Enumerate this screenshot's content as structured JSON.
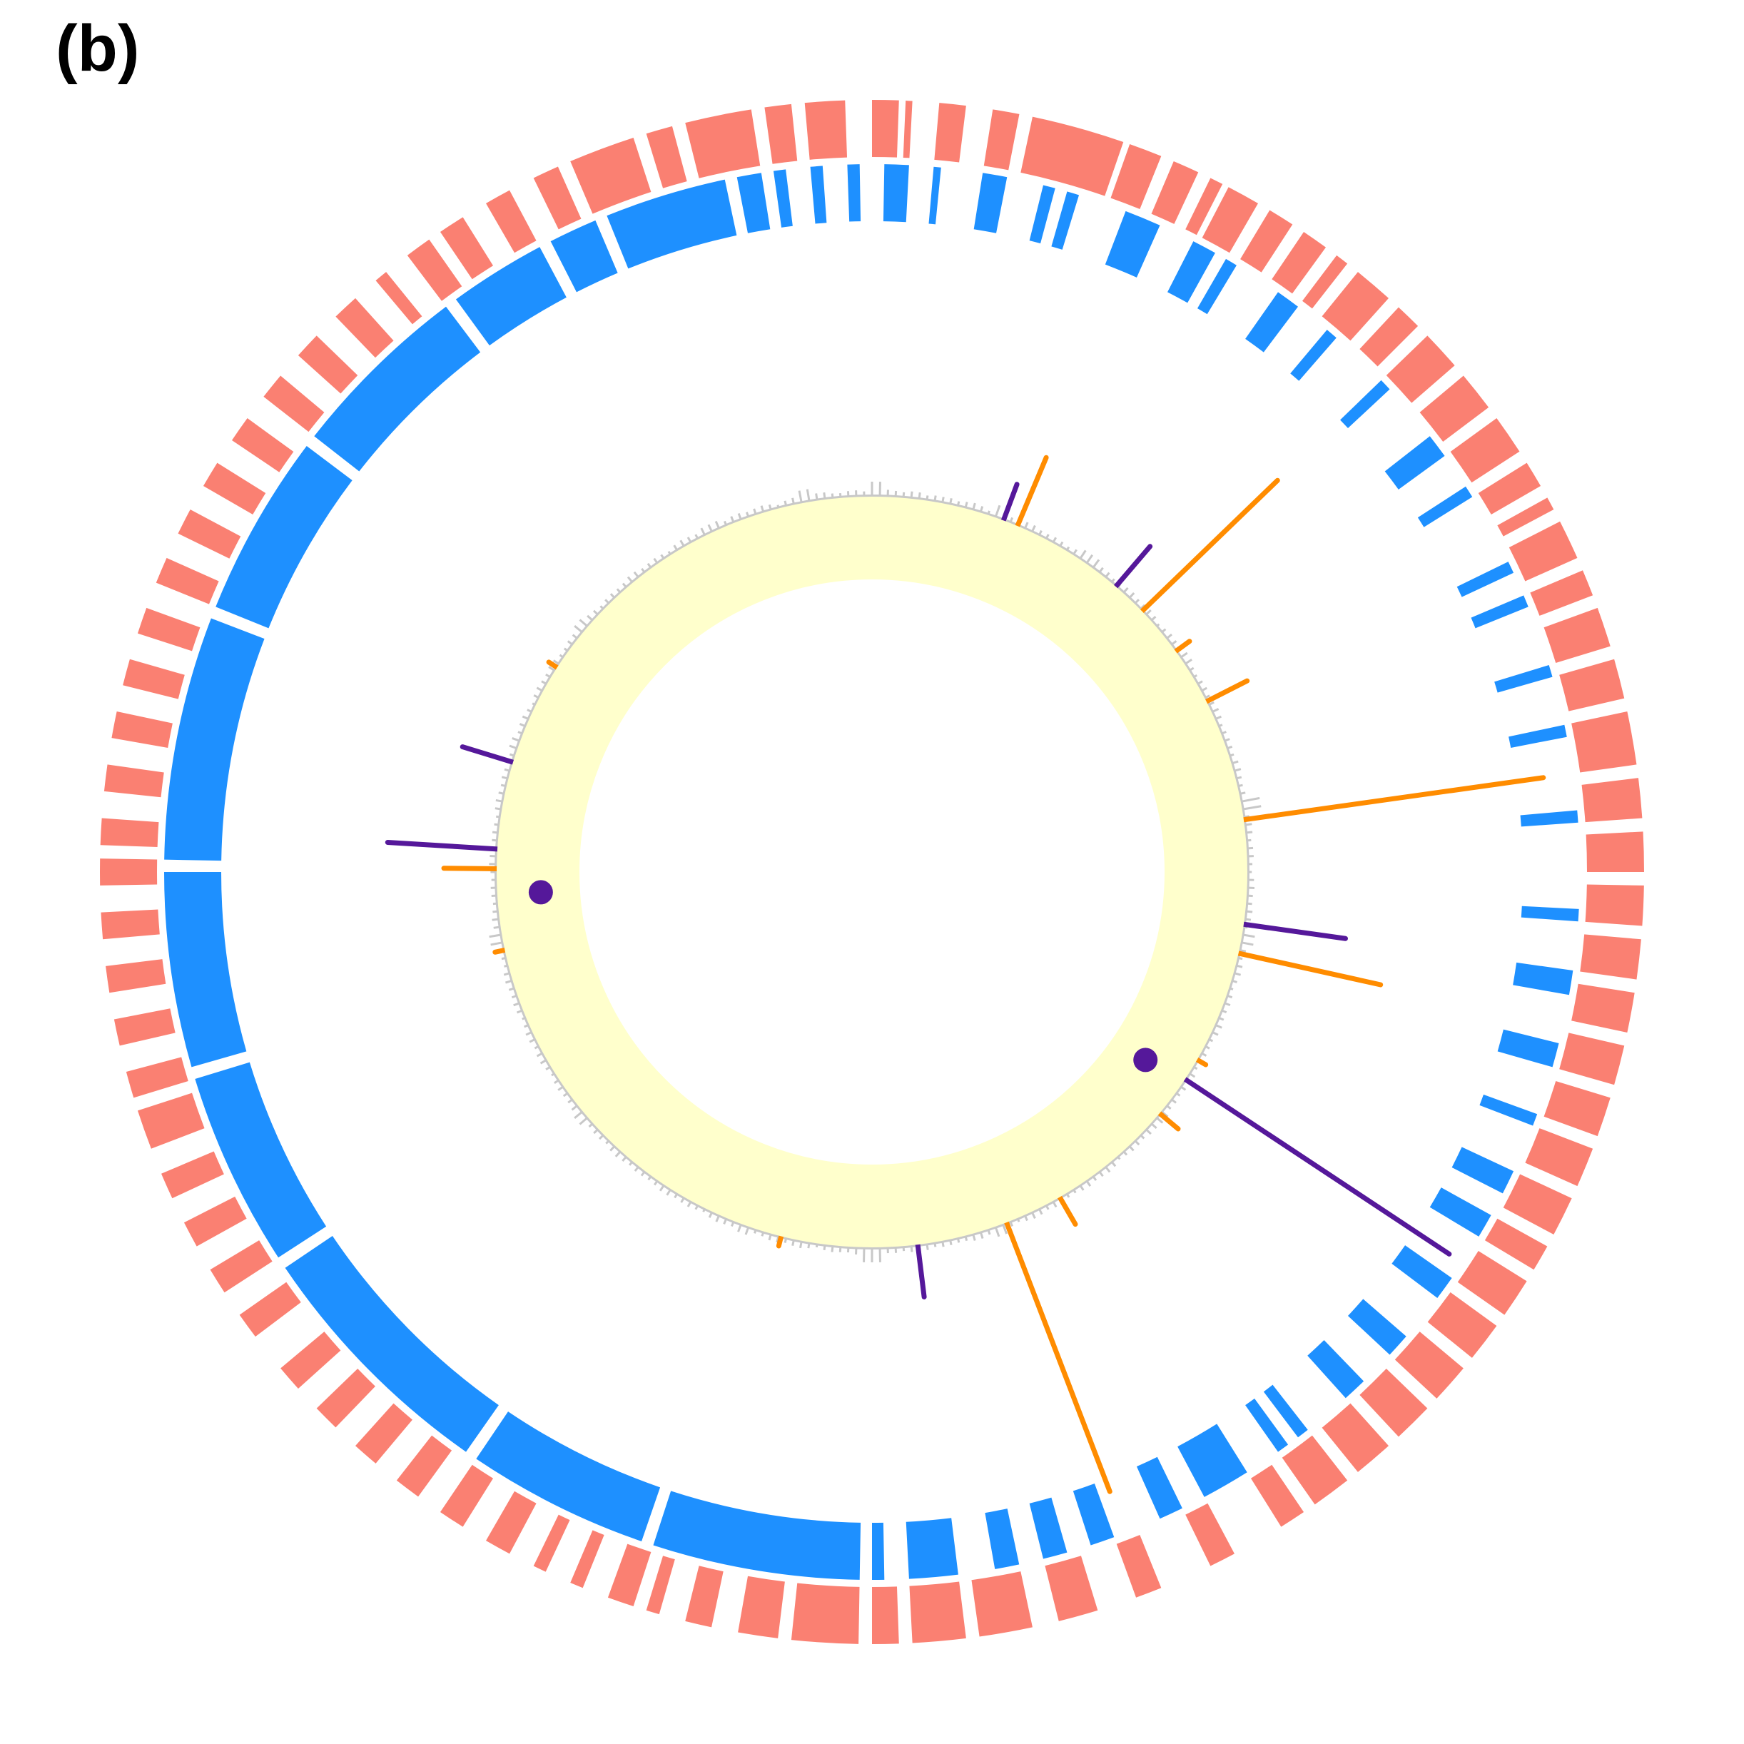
{
  "panel_label": "(b)",
  "colors": {
    "outer_ring": "#fa8072",
    "inner_ring": "#1e90ff",
    "core_ring": "#ffffcc",
    "histogram": "#c8c8c8",
    "spike_orange": "#ff8c00",
    "spike_purple": "#55189a",
    "marker": "#55189a"
  },
  "outer_ring_segments": [
    [
      0,
      2
    ],
    [
      2.5,
      3
    ],
    [
      5,
      7
    ],
    [
      9,
      11
    ],
    [
      12,
      19
    ],
    [
      19.5,
      22
    ],
    [
      23,
      25
    ],
    [
      26,
      27
    ],
    [
      27.5,
      30
    ],
    [
      31,
      33
    ],
    [
      34,
      36
    ],
    [
      37,
      38
    ],
    [
      39,
      42
    ],
    [
      43,
      45
    ],
    [
      46,
      49
    ],
    [
      50,
      53
    ],
    [
      54,
      57
    ],
    [
      58,
      60
    ],
    [
      61,
      62
    ],
    [
      63,
      66
    ],
    [
      67,
      69
    ],
    [
      70,
      73
    ],
    [
      74,
      77
    ],
    [
      78,
      82
    ],
    [
      83,
      86
    ],
    [
      87,
      90
    ],
    [
      91,
      94
    ],
    [
      95,
      98
    ],
    [
      99,
      102
    ],
    [
      103,
      106
    ],
    [
      107,
      110
    ],
    [
      111,
      114
    ],
    [
      115,
      118
    ],
    [
      119,
      121
    ],
    [
      122,
      125
    ],
    [
      126,
      129
    ],
    [
      130,
      133
    ],
    [
      134,
      137
    ],
    [
      138,
      141
    ],
    [
      142,
      145
    ],
    [
      146,
      148
    ],
    [
      152,
      154
    ],
    [
      158,
      160
    ],
    [
      163,
      166
    ],
    [
      168,
      172
    ],
    [
      173,
      177
    ],
    [
      178,
      180
    ],
    [
      181,
      186
    ],
    [
      187,
      190
    ],
    [
      192,
      194
    ],
    [
      196,
      197
    ],
    [
      198,
      200
    ],
    [
      202,
      203
    ],
    [
      205,
      206
    ],
    [
      208,
      210
    ],
    [
      212,
      214
    ],
    [
      216,
      218
    ],
    [
      220,
      222
    ],
    [
      224,
      226
    ],
    [
      228,
      230
    ],
    [
      233,
      235
    ],
    [
      237,
      239
    ],
    [
      241,
      243
    ],
    [
      245,
      247
    ],
    [
      249,
      252
    ],
    [
      253,
      255
    ],
    [
      257,
      259
    ],
    [
      261,
      263
    ],
    [
      265,
      267
    ],
    [
      269,
      271
    ],
    [
      272,
      274
    ],
    [
      276,
      278
    ],
    [
      280,
      282
    ],
    [
      284,
      286
    ],
    [
      288,
      290
    ],
    [
      292,
      294
    ],
    [
      296,
      298
    ],
    [
      300,
      302
    ],
    [
      304,
      306
    ],
    [
      308,
      310
    ],
    [
      312,
      314
    ],
    [
      316,
      318
    ],
    [
      320,
      321
    ],
    [
      323,
      325
    ],
    [
      326,
      328
    ],
    [
      330,
      332
    ],
    [
      334,
      336
    ],
    [
      337,
      342
    ],
    [
      343,
      345
    ],
    [
      346,
      351
    ],
    [
      352,
      354
    ],
    [
      355,
      358
    ]
  ],
  "inner_ring_segments": [
    [
      1,
      3
    ],
    [
      5,
      5.6
    ],
    [
      9,
      11
    ],
    [
      14,
      15
    ],
    [
      16,
      17
    ],
    [
      21,
      24
    ],
    [
      27,
      29
    ],
    [
      30,
      31
    ],
    [
      35,
      37
    ],
    [
      40,
      41
    ],
    [
      46,
      47
    ],
    [
      52,
      54
    ],
    [
      57,
      58
    ],
    [
      64,
      65
    ],
    [
      67,
      68
    ],
    [
      73,
      74
    ],
    [
      78,
      79
    ],
    [
      85,
      86
    ],
    [
      93,
      94
    ],
    [
      98,
      100
    ],
    [
      104,
      106
    ],
    [
      110,
      111
    ],
    [
      115,
      117
    ],
    [
      119,
      121
    ],
    [
      125,
      127
    ],
    [
      131,
      133
    ],
    [
      136,
      138
    ],
    [
      142,
      143
    ],
    [
      144,
      145
    ],
    [
      148,
      152
    ],
    [
      154,
      156
    ],
    [
      160,
      162
    ],
    [
      164,
      166
    ],
    [
      168,
      170
    ],
    [
      173,
      177
    ],
    [
      179,
      180
    ],
    [
      181,
      198
    ],
    [
      199,
      214
    ],
    [
      215,
      236
    ],
    [
      237,
      253
    ],
    [
      254,
      270
    ],
    [
      271,
      291
    ],
    [
      292,
      307
    ],
    [
      308,
      323
    ],
    [
      324,
      332
    ],
    [
      333,
      337
    ],
    [
      338,
      348
    ],
    [
      349,
      351
    ],
    [
      352,
      353
    ],
    [
      355,
      356
    ],
    [
      358,
      359
    ]
  ],
  "histogram_bars": [
    {
      "angle": 0,
      "value": 0.35
    },
    {
      "angle": 10,
      "value": 0.15
    },
    {
      "angle": 20,
      "value": 0.3
    },
    {
      "angle": 35,
      "value": 0.25
    },
    {
      "angle": 55,
      "value": 0.2
    },
    {
      "angle": 80,
      "value": 0.45
    },
    {
      "angle": 100,
      "value": 0.3
    },
    {
      "angle": 130,
      "value": 0.2
    },
    {
      "angle": 160,
      "value": 0.25
    },
    {
      "angle": 180,
      "value": 0.35
    },
    {
      "angle": 200,
      "value": 0.2
    },
    {
      "angle": 230,
      "value": 0.25
    },
    {
      "angle": 260,
      "value": 0.3
    },
    {
      "angle": 290,
      "value": 0.2
    },
    {
      "angle": 310,
      "value": 0.25
    },
    {
      "angle": 335,
      "value": 0.2
    },
    {
      "angle": 350,
      "value": 0.3
    }
  ],
  "spikes": [
    {
      "angle": 22.8,
      "length": 0.11,
      "group": "orange"
    },
    {
      "angle": 20.5,
      "length": 0.06,
      "group": "purple"
    },
    {
      "angle": 46,
      "length": 0.27,
      "group": "orange"
    },
    {
      "angle": 40.5,
      "length": 0.08,
      "group": "purple"
    },
    {
      "angle": 54,
      "length": 0.03,
      "group": "orange"
    },
    {
      "angle": 63,
      "length": 0.07,
      "group": "orange"
    },
    {
      "angle": 82,
      "length": 0.43,
      "group": "orange"
    },
    {
      "angle": 98,
      "length": 0.15,
      "group": "purple"
    },
    {
      "angle": 102.5,
      "length": 0.21,
      "group": "orange"
    },
    {
      "angle": 120,
      "length": 0.02,
      "group": "orange"
    },
    {
      "angle": 123.5,
      "length": 0.45,
      "group": "purple"
    },
    {
      "angle": 130,
      "length": 0.04,
      "group": "orange"
    },
    {
      "angle": 150,
      "length": 0.05,
      "group": "orange"
    },
    {
      "angle": 159,
      "length": 0.41,
      "group": "orange"
    },
    {
      "angle": 173,
      "length": 0.08,
      "group": "purple"
    },
    {
      "angle": 194,
      "length": 0.02,
      "group": "orange"
    },
    {
      "angle": 258,
      "length": 0.02,
      "group": "orange"
    },
    {
      "angle": 270.5,
      "length": 0.08,
      "group": "orange"
    },
    {
      "angle": 273.5,
      "length": 0.16,
      "group": "purple"
    },
    {
      "angle": 287,
      "length": 0.08,
      "group": "purple"
    },
    {
      "angle": 303,
      "length": 0.02,
      "group": "orange"
    }
  ],
  "markers": [
    {
      "angle": 266.5
    },
    {
      "angle": 124.5
    }
  ]
}
